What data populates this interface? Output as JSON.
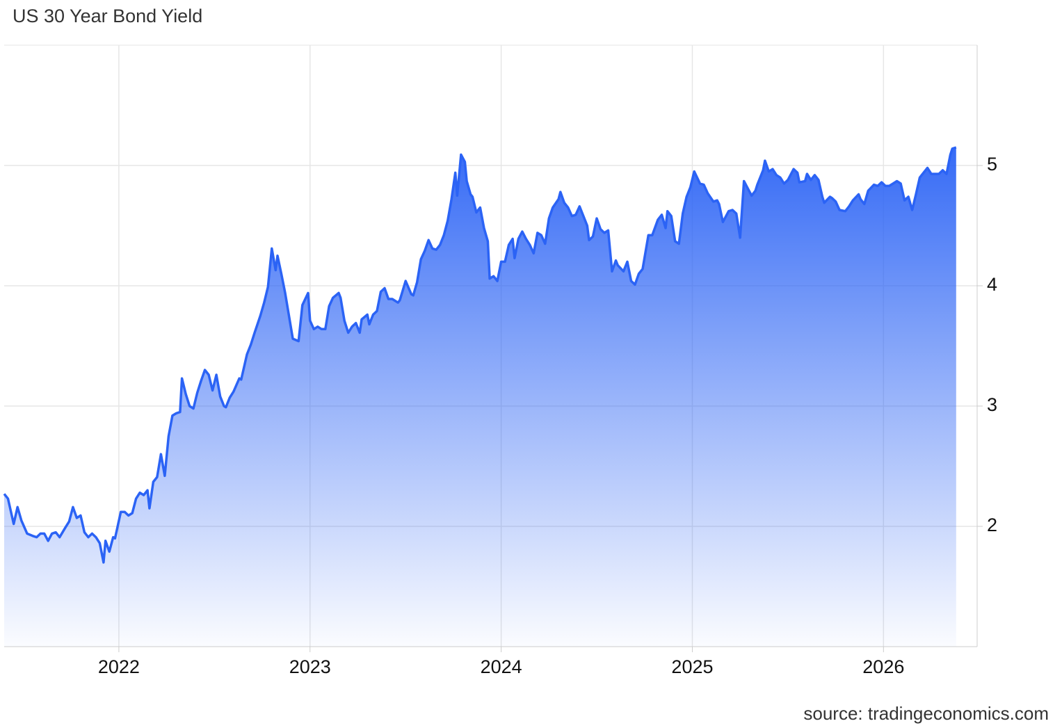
{
  "chart_data": {
    "type": "area",
    "title": "US 30 Year Bond Yield",
    "source": "source: tradingeconomics.com",
    "color": "#2b63f5",
    "x": [
      2021.4,
      2021.42,
      2021.45,
      2021.47,
      2021.49,
      2021.52,
      2021.55,
      2021.57,
      2021.59,
      2021.61,
      2021.63,
      2021.65,
      2021.67,
      2021.69,
      2021.72,
      2021.74,
      2021.76,
      2021.78,
      2021.8,
      2021.82,
      2021.84,
      2021.86,
      2021.88,
      2021.9,
      2021.92,
      2021.93,
      2021.95,
      2021.97,
      2021.98,
      2022.01,
      2022.03,
      2022.05,
      2022.07,
      2022.09,
      2022.11,
      2022.13,
      2022.15,
      2022.16,
      2022.18,
      2022.2,
      2022.22,
      2022.24,
      2022.26,
      2022.28,
      2022.3,
      2022.32,
      2022.33,
      2022.35,
      2022.37,
      2022.39,
      2022.41,
      2022.43,
      2022.45,
      2022.47,
      2022.49,
      2022.51,
      2022.53,
      2022.55,
      2022.56,
      2022.58,
      2022.6,
      2022.63,
      2022.64,
      2022.67,
      2022.69,
      2022.71,
      2022.74,
      2022.76,
      2022.78,
      2022.8,
      2022.82,
      2022.83,
      2022.85,
      2022.87,
      2022.89,
      2022.91,
      2022.94,
      2022.96,
      2022.99,
      2023.0,
      2023.02,
      2023.04,
      2023.06,
      2023.08,
      2023.1,
      2023.12,
      2023.15,
      2023.16,
      2023.18,
      2023.2,
      2023.22,
      2023.24,
      2023.26,
      2023.27,
      2023.3,
      2023.31,
      2023.33,
      2023.35,
      2023.37,
      2023.39,
      2023.41,
      2023.43,
      2023.46,
      2023.47,
      2023.5,
      2023.53,
      2023.54,
      2023.56,
      2023.58,
      2023.6,
      2023.62,
      2023.64,
      2023.66,
      2023.68,
      2023.7,
      2023.72,
      2023.74,
      2023.76,
      2023.77,
      2023.79,
      2023.81,
      2023.82,
      2023.84,
      2023.85,
      2023.87,
      2023.89,
      2023.91,
      2023.93,
      2023.94,
      2023.96,
      2023.98,
      2024.0,
      2024.02,
      2024.04,
      2024.06,
      2024.07,
      2024.09,
      2024.11,
      2024.13,
      2024.15,
      2024.17,
      2024.19,
      2024.21,
      2024.23,
      2024.25,
      2024.27,
      2024.3,
      2024.31,
      2024.33,
      2024.35,
      2024.37,
      2024.39,
      2024.41,
      2024.43,
      2024.45,
      2024.46,
      2024.48,
      2024.5,
      2024.52,
      2024.54,
      2024.56,
      2024.58,
      2024.6,
      2024.61,
      2024.64,
      2024.66,
      2024.68,
      2024.7,
      2024.72,
      2024.74,
      2024.77,
      2024.79,
      2024.82,
      2024.84,
      2024.86,
      2024.87,
      2024.89,
      2024.91,
      2024.93,
      2024.95,
      2024.97,
      2024.99,
      2025.01,
      2025.04,
      2025.06,
      2025.08,
      2025.11,
      2025.13,
      2025.14,
      2025.16,
      2025.19,
      2025.21,
      2025.23,
      2025.25,
      2025.27,
      2025.29,
      2025.31,
      2025.33,
      2025.34,
      2025.37,
      2025.38,
      2025.4,
      2025.42,
      2025.44,
      2025.46,
      2025.48,
      2025.5,
      2025.53,
      2025.55,
      2025.56,
      2025.59,
      2025.6,
      2025.62,
      2025.64,
      2025.66,
      2025.68,
      2025.69,
      2025.72,
      2025.73,
      2025.75,
      2025.77,
      2025.8,
      2025.82,
      2025.84,
      2025.87,
      2025.88,
      2025.9,
      2025.92,
      2025.95,
      2025.97,
      2025.99,
      2026.01,
      2026.03,
      2026.05,
      2026.07,
      2026.09,
      2026.11,
      2026.13,
      2026.15,
      2026.17,
      2026.19,
      2026.21,
      2026.23,
      2026.25,
      2026.27,
      2026.29,
      2026.31,
      2026.33,
      2026.35,
      2026.36,
      2026.38
    ],
    "values": [
      2.27,
      2.23,
      2.02,
      2.16,
      2.05,
      1.94,
      1.92,
      1.91,
      1.94,
      1.94,
      1.88,
      1.94,
      1.95,
      1.91,
      1.99,
      2.04,
      2.16,
      2.07,
      2.09,
      1.95,
      1.91,
      1.94,
      1.91,
      1.86,
      1.7,
      1.88,
      1.79,
      1.91,
      1.9,
      2.12,
      2.12,
      2.09,
      2.11,
      2.23,
      2.28,
      2.26,
      2.3,
      2.15,
      2.37,
      2.41,
      2.6,
      2.42,
      2.75,
      2.92,
      2.94,
      2.95,
      3.23,
      3.1,
      3.0,
      2.98,
      3.11,
      3.21,
      3.3,
      3.26,
      3.13,
      3.26,
      3.08,
      3.0,
      2.99,
      3.07,
      3.12,
      3.23,
      3.22,
      3.43,
      3.51,
      3.61,
      3.75,
      3.86,
      3.99,
      4.31,
      4.13,
      4.25,
      4.1,
      3.94,
      3.75,
      3.56,
      3.54,
      3.84,
      3.94,
      3.71,
      3.64,
      3.66,
      3.64,
      3.64,
      3.83,
      3.9,
      3.94,
      3.9,
      3.71,
      3.61,
      3.66,
      3.69,
      3.61,
      3.72,
      3.76,
      3.68,
      3.76,
      3.79,
      3.95,
      3.98,
      3.89,
      3.89,
      3.86,
      3.88,
      4.04,
      3.93,
      3.92,
      4.03,
      4.22,
      4.29,
      4.38,
      4.31,
      4.3,
      4.34,
      4.42,
      4.54,
      4.72,
      4.94,
      4.75,
      5.09,
      5.03,
      4.87,
      4.76,
      4.74,
      4.61,
      4.65,
      4.48,
      4.37,
      4.06,
      4.08,
      4.04,
      4.2,
      4.2,
      4.34,
      4.39,
      4.23,
      4.39,
      4.45,
      4.39,
      4.34,
      4.27,
      4.44,
      4.42,
      4.35,
      4.56,
      4.65,
      4.72,
      4.78,
      4.69,
      4.65,
      4.58,
      4.59,
      4.66,
      4.58,
      4.5,
      4.38,
      4.41,
      4.56,
      4.47,
      4.44,
      4.46,
      4.12,
      4.21,
      4.17,
      4.12,
      4.2,
      4.04,
      4.01,
      4.1,
      4.14,
      4.42,
      4.42,
      4.55,
      4.59,
      4.48,
      4.62,
      4.58,
      4.37,
      4.35,
      4.6,
      4.74,
      4.82,
      4.95,
      4.85,
      4.84,
      4.77,
      4.7,
      4.71,
      4.68,
      4.53,
      4.62,
      4.63,
      4.6,
      4.4,
      4.87,
      4.81,
      4.75,
      4.79,
      4.84,
      4.96,
      5.04,
      4.95,
      4.97,
      4.92,
      4.9,
      4.85,
      4.88,
      4.97,
      4.94,
      4.86,
      4.87,
      4.93,
      4.88,
      4.92,
      4.88,
      4.74,
      4.69,
      4.74,
      4.73,
      4.7,
      4.63,
      4.62,
      4.66,
      4.71,
      4.76,
      4.72,
      4.68,
      4.79,
      4.84,
      4.83,
      4.86,
      4.83,
      4.83,
      4.85,
      4.87,
      4.85,
      4.71,
      4.74,
      4.63,
      4.76,
      4.9,
      4.94,
      4.98,
      4.93,
      4.93,
      4.93,
      4.96,
      4.93,
      5.09,
      5.14,
      5.15
    ],
    "xlim": [
      2021.4,
      2026.49
    ],
    "ylim": [
      1,
      6
    ],
    "xticks": [
      2022,
      2023,
      2024,
      2025,
      2026
    ],
    "yticks": [
      2,
      3,
      4,
      5
    ],
    "grid": true
  }
}
